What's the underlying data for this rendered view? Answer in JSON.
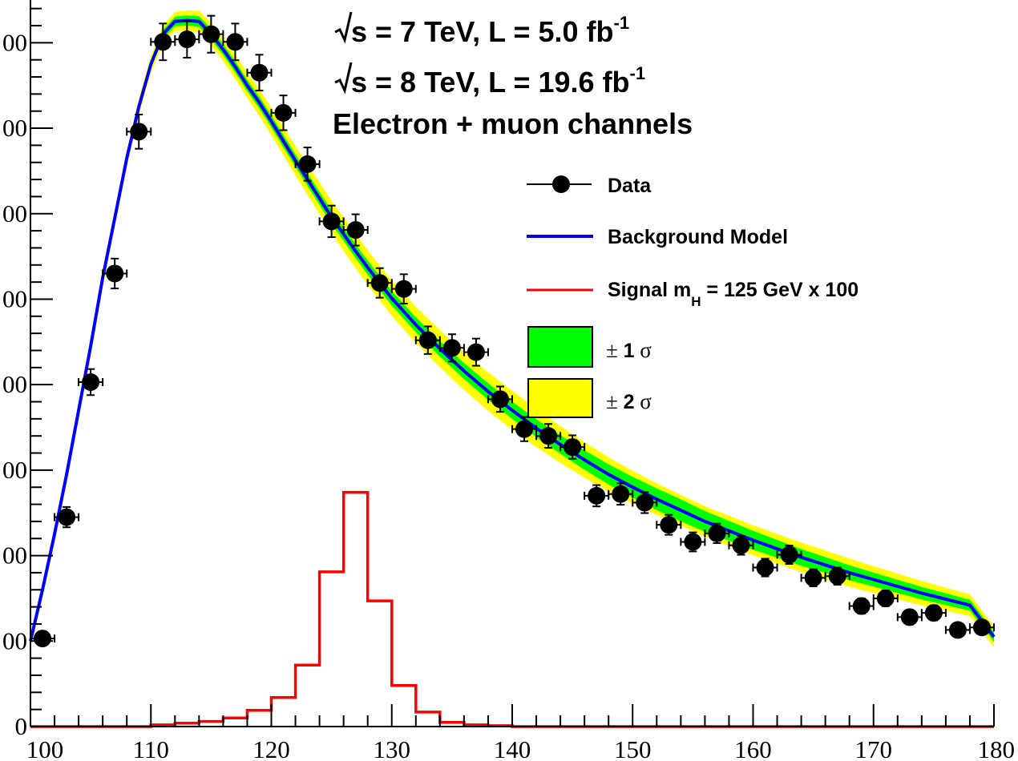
{
  "chart_data": {
    "type": "scatter",
    "title": "",
    "xlabel": "",
    "ylabel": "",
    "xlim": [
      100,
      180
    ],
    "ylim": [
      0,
      8500
    ],
    "x_ticks": [
      100,
      110,
      120,
      130,
      140,
      150,
      160,
      170,
      180
    ],
    "y_ticks_visible_labels": [
      "0",
      "00",
      "00",
      "00",
      "00",
      "00",
      "00",
      "00",
      "00"
    ],
    "grid": false,
    "legend_position": "right",
    "annotations": {
      "line1": {
        "sqrt": "s",
        "text": " = 7 TeV, L = 5.0 fb",
        "sup": "-1"
      },
      "line2": {
        "sqrt": "s",
        "text": " = 8 TeV, L = 19.6 fb",
        "sup": "-1"
      },
      "line3": "Electron + muon channels"
    },
    "legend": [
      {
        "label": "Data",
        "kind": "marker",
        "color": "#000000"
      },
      {
        "label": "Background Model",
        "kind": "line",
        "color": "#0000ff"
      },
      {
        "label": "Signal m",
        "sub": "H",
        "label_tail": " = 125 GeV x 100",
        "kind": "line",
        "color": "#ff0000"
      },
      {
        "label_prefix": "± ",
        "label_bold": "1",
        "label_symbol": " σ",
        "kind": "band",
        "color": "#00ff00"
      },
      {
        "label_prefix": "± ",
        "label_bold": "2",
        "label_symbol": " σ",
        "kind": "band",
        "color": "#ffff00"
      }
    ],
    "series": [
      {
        "name": "Data",
        "x": [
          101,
          103,
          105,
          107,
          109,
          111,
          113,
          115,
          117,
          119,
          121,
          123,
          125,
          127,
          129,
          131,
          133,
          135,
          137,
          139,
          141,
          143,
          145,
          147,
          149,
          151,
          153,
          155,
          157,
          159,
          161,
          163,
          165,
          167,
          169,
          171,
          173,
          175,
          177,
          179
        ],
        "y": [
          1030,
          2450,
          4030,
          5300,
          6960,
          8010,
          8040,
          8100,
          8010,
          7650,
          7180,
          6580,
          5910,
          5810,
          5190,
          5120,
          4520,
          4430,
          4380,
          3830,
          3480,
          3400,
          3270,
          2700,
          2720,
          2620,
          2360,
          2160,
          2260,
          2120,
          1860,
          2010,
          1740,
          1760,
          1410,
          1500,
          1280,
          1330,
          1130,
          1160
        ]
      },
      {
        "name": "Background Model",
        "x": [
          100,
          101,
          102,
          103,
          104,
          105,
          106,
          107,
          108,
          109,
          110,
          111,
          112,
          113,
          114,
          115,
          116,
          117,
          118,
          119,
          120,
          121,
          122,
          123,
          124,
          125,
          126,
          127,
          128,
          129,
          130,
          132,
          134,
          136,
          138,
          140,
          142,
          144,
          146,
          148,
          150,
          152,
          154,
          156,
          158,
          160,
          162,
          164,
          166,
          168,
          170,
          172,
          174,
          176,
          178,
          180
        ],
        "y": [
          1000,
          1600,
          2250,
          2950,
          3700,
          4450,
          5250,
          5950,
          6650,
          7250,
          7750,
          8100,
          8250,
          8260,
          8250,
          8100,
          7920,
          7720,
          7500,
          7300,
          7080,
          6850,
          6620,
          6400,
          6180,
          5960,
          5760,
          5560,
          5370,
          5190,
          5010,
          4700,
          4420,
          4160,
          3920,
          3700,
          3490,
          3300,
          3120,
          2950,
          2800,
          2660,
          2530,
          2400,
          2290,
          2180,
          2080,
          1980,
          1890,
          1800,
          1720,
          1640,
          1560,
          1490,
          1420,
          1050
        ]
      },
      {
        "name": "Signal m_H = 125 GeV x 100",
        "bin_edges": [
          100,
          102,
          104,
          106,
          108,
          110,
          112,
          114,
          116,
          118,
          120,
          122,
          124,
          126,
          128,
          130,
          132,
          134,
          136,
          138,
          140,
          180
        ],
        "values": [
          0,
          0,
          0,
          0,
          0,
          20,
          40,
          60,
          100,
          190,
          340,
          720,
          1810,
          2740,
          1470,
          480,
          170,
          50,
          20,
          10,
          0
        ]
      }
    ],
    "band_1sigma_halfwidth": [
      20,
      60,
      80,
      100,
      130,
      90,
      60
    ],
    "band_2sigma_halfwidth": [
      40,
      120,
      200,
      230,
      180,
      170,
      120
    ]
  }
}
